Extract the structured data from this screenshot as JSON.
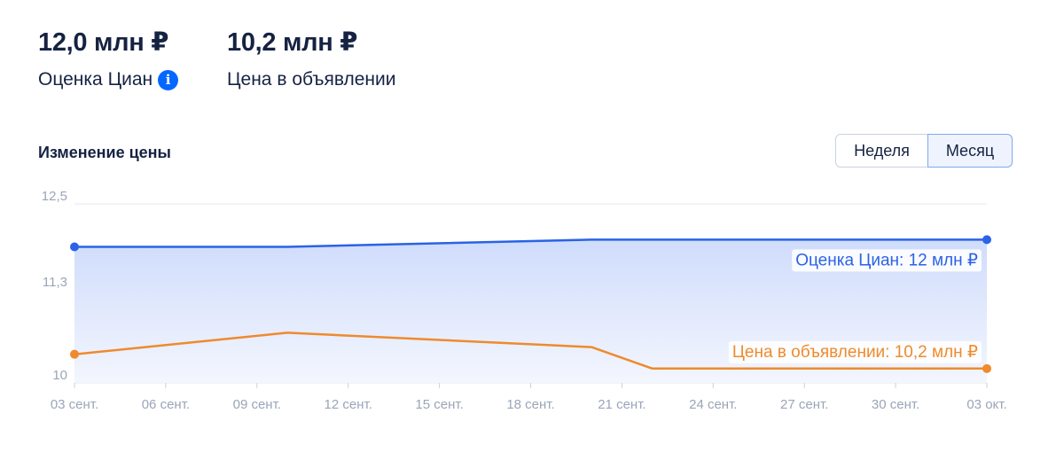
{
  "stats": [
    {
      "value": "12,0 млн ₽",
      "label": "Оценка Циан"
    },
    {
      "value": "10,2 млн ₽",
      "label": "Цена в объявлении"
    }
  ],
  "info_icon": "info-icon",
  "section_title": "Изменение цены",
  "period_toggle": {
    "options": [
      "Неделя",
      "Месяц"
    ],
    "selected": "Месяц"
  },
  "colors": {
    "estimate": "#2b62e6",
    "listing": "#ef8a2d",
    "grid": "#e3e7ef",
    "tick": "#9aa5b8"
  },
  "chart_data": {
    "type": "line",
    "title": "Изменение цены",
    "xlabel": "",
    "ylabel": "",
    "y_ticks": [
      {
        "value": 10,
        "label": "10"
      },
      {
        "value": 11.3,
        "label": "11,3"
      },
      {
        "value": 12.5,
        "label": "12,5"
      }
    ],
    "ylim": [
      10,
      12.5
    ],
    "x_start": "2023-09-03",
    "x_end": "2023-10-03",
    "x_ticks": [
      {
        "date": "2023-09-03",
        "label": "03 сент."
      },
      {
        "date": "2023-09-06",
        "label": "06 сент."
      },
      {
        "date": "2023-09-09",
        "label": "09 сент."
      },
      {
        "date": "2023-09-12",
        "label": "12 сент."
      },
      {
        "date": "2023-09-15",
        "label": "15 сент."
      },
      {
        "date": "2023-09-18",
        "label": "18 сент."
      },
      {
        "date": "2023-09-21",
        "label": "21 сент."
      },
      {
        "date": "2023-09-24",
        "label": "24 сент."
      },
      {
        "date": "2023-09-27",
        "label": "27 сент."
      },
      {
        "date": "2023-09-30",
        "label": "30 сент."
      },
      {
        "date": "2023-10-03",
        "label": "03 окт."
      }
    ],
    "grid": true,
    "series": [
      {
        "name": "Оценка Циан",
        "label": "Оценка Циан: 12 млн ₽",
        "color": "#2b62e6",
        "area": true,
        "points": [
          {
            "date": "2023-09-03",
            "value": 11.9
          },
          {
            "date": "2023-09-10",
            "value": 11.9
          },
          {
            "date": "2023-09-20",
            "value": 12.0
          },
          {
            "date": "2023-10-03",
            "value": 12.0
          }
        ]
      },
      {
        "name": "Цена в объявлении",
        "label": "Цена в объявлении: 10,2 млн ₽",
        "color": "#ef8a2d",
        "area": false,
        "points": [
          {
            "date": "2023-09-03",
            "value": 10.4
          },
          {
            "date": "2023-09-10",
            "value": 10.7
          },
          {
            "date": "2023-09-20",
            "value": 10.5
          },
          {
            "date": "2023-09-22",
            "value": 10.2
          },
          {
            "date": "2023-10-03",
            "value": 10.2
          }
        ]
      }
    ]
  }
}
